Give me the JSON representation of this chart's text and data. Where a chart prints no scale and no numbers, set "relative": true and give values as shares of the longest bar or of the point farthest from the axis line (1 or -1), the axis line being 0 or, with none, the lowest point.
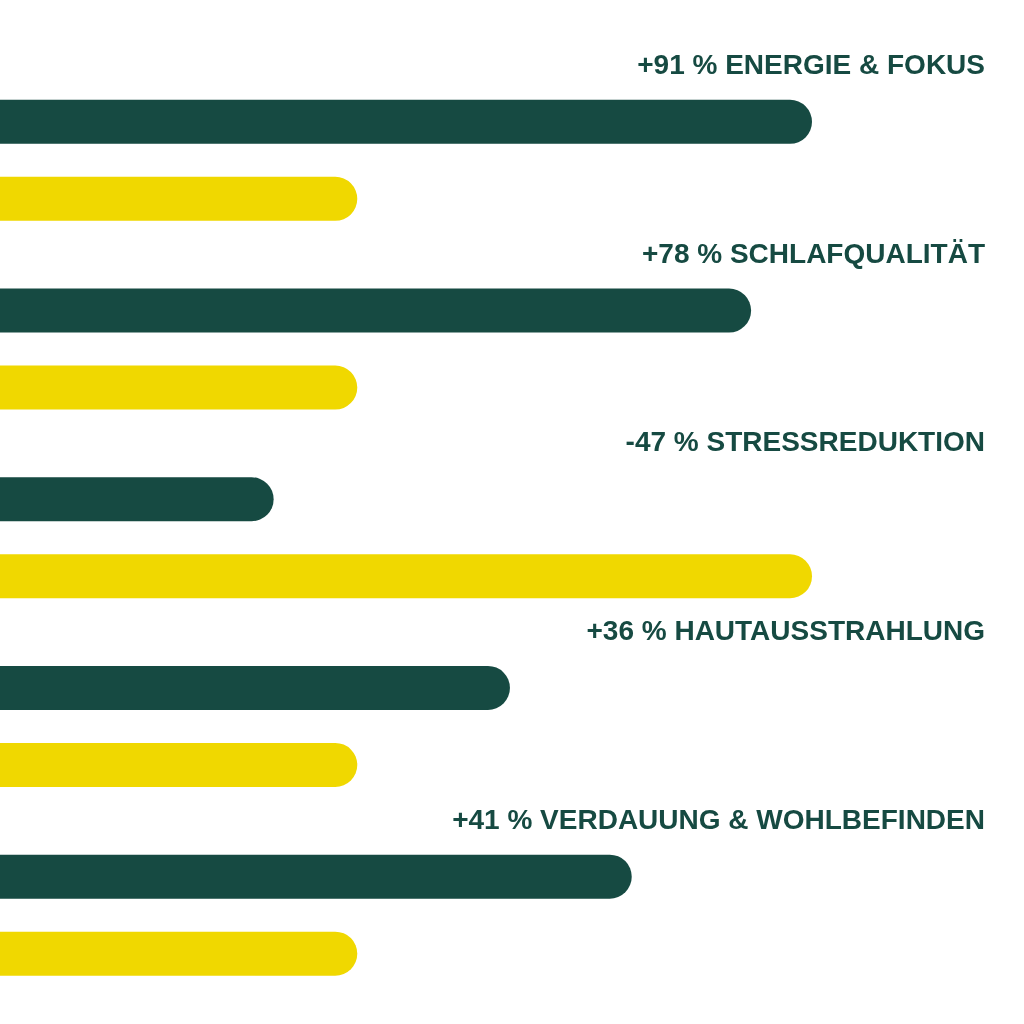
{
  "chart_data": {
    "type": "bar",
    "orientation": "horizontal",
    "relative": true,
    "categories": [
      "+91 % ENERGIE & FOKUS",
      "+78 % SCHLAFQUALITÄT",
      "-47 % STRESSREDUKTION",
      "+36 % HAUTAUSSTRAHLUNG",
      "+41 % VERDAUUNG & WOHLBEFINDEN"
    ],
    "series": [
      {
        "color": "#164a42",
        "values": [
          1,
          0.925,
          0.337,
          0.628,
          0.778
        ]
      },
      {
        "color": "#f0d800",
        "values": [
          0.44,
          0.44,
          1,
          0.44,
          0.44
        ]
      }
    ]
  }
}
